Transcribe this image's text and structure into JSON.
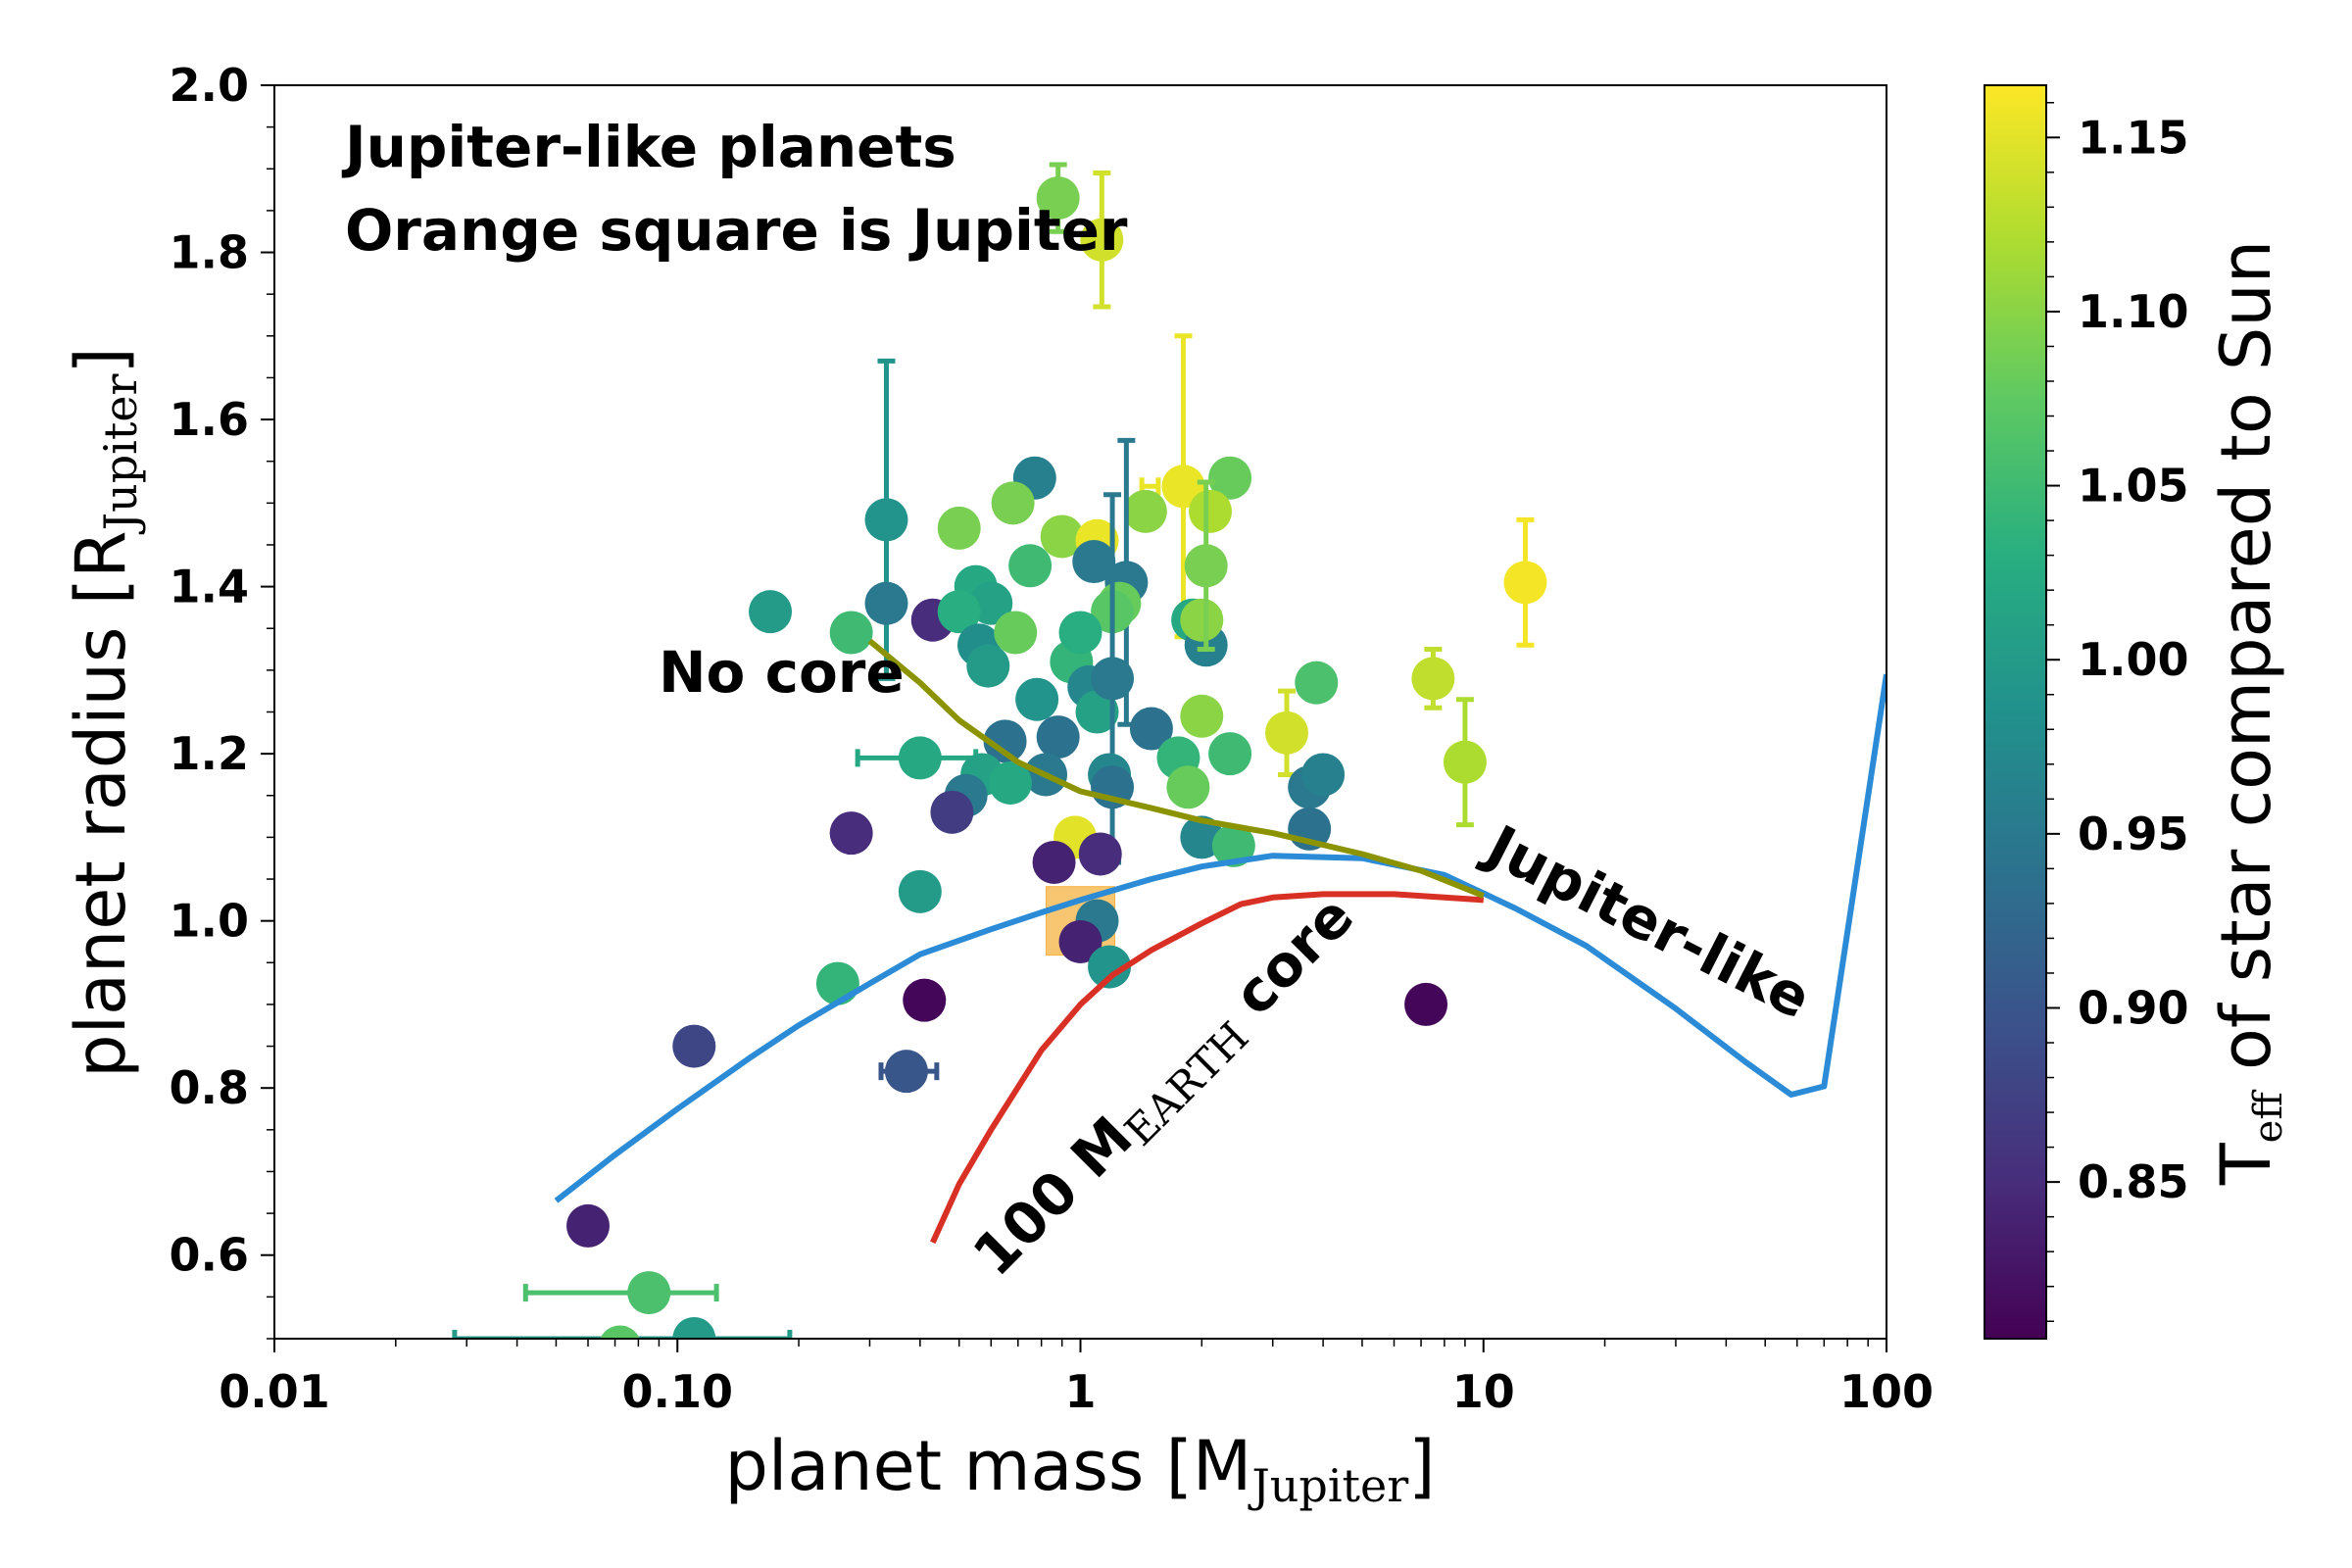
{
  "chart_data": {
    "type": "scatter",
    "title": "",
    "xlabel": "planet mass [M",
    "xlabel_sub": "Jupiter",
    "xlabel_end": "]",
    "ylabel": "planet radius [R",
    "ylabel_sub": "Jupiter",
    "ylabel_end": "]",
    "x_scale": "log",
    "xlim": [
      0.01,
      100
    ],
    "ylim": [
      0.5,
      2.0
    ],
    "x_ticks": [
      0.01,
      0.1,
      1,
      10,
      100
    ],
    "x_tick_labels": [
      "0.01",
      "0.10",
      "1",
      "10",
      "100"
    ],
    "y_ticks": [
      0.6,
      0.8,
      1.0,
      1.2,
      1.4,
      1.6,
      1.8,
      2.0
    ],
    "y_tick_labels": [
      "0.6",
      "0.8",
      "1.0",
      "1.2",
      "1.4",
      "1.6",
      "1.8",
      "2.0"
    ],
    "colorbar": {
      "label": "T",
      "label_sub": "eff",
      "label_end": " of star compared to Sun",
      "range": [
        0.805,
        1.165
      ],
      "ticks": [
        0.85,
        0.9,
        0.95,
        1.0,
        1.05,
        1.1,
        1.15
      ],
      "tick_labels": [
        "0.85",
        "0.90",
        "0.95",
        "1.00",
        "1.05",
        "1.10",
        "1.15"
      ]
    },
    "annotations": {
      "line1": "Jupiter-like planets",
      "line2": "Orange square is Jupiter",
      "no_core": "No core",
      "jupiter_like": "Jupiter-like",
      "core_prefix": "100 M",
      "core_sub": "EARTH",
      "core_suffix": " core"
    },
    "jupiter_marker": {
      "x": 1.0,
      "y": 1.0,
      "color": "#f5a623"
    },
    "curves": [
      {
        "color": "#2b8bd6",
        "points": [
          [
            0.05,
            0.665
          ],
          [
            0.07,
            0.72
          ],
          [
            0.1,
            0.775
          ],
          [
            0.15,
            0.835
          ],
          [
            0.2,
            0.875
          ],
          [
            0.3,
            0.925
          ],
          [
            0.4,
            0.96
          ],
          [
            0.6,
            0.99
          ],
          [
            0.8,
            1.01
          ],
          [
            1.0,
            1.025
          ],
          [
            1.5,
            1.05
          ],
          [
            2.0,
            1.065
          ],
          [
            3.0,
            1.078
          ],
          [
            5.0,
            1.075
          ],
          [
            8.0,
            1.055
          ],
          [
            12.0,
            1.015
          ],
          [
            18.0,
            0.97
          ],
          [
            30.0,
            0.895
          ],
          [
            45.0,
            0.83
          ],
          [
            58.0,
            0.792
          ],
          [
            70.0,
            0.802
          ],
          [
            100.0,
            1.295
          ]
        ]
      },
      {
        "color": "#d93025",
        "points": [
          [
            0.43,
            0.615
          ],
          [
            0.5,
            0.685
          ],
          [
            0.6,
            0.75
          ],
          [
            0.8,
            0.845
          ],
          [
            1.0,
            0.9
          ],
          [
            1.2,
            0.935
          ],
          [
            1.5,
            0.965
          ],
          [
            2.0,
            0.997
          ],
          [
            2.5,
            1.02
          ],
          [
            3.0,
            1.028
          ],
          [
            4.0,
            1.032
          ],
          [
            6.0,
            1.032
          ],
          [
            10.0,
            1.025
          ]
        ]
      },
      {
        "color": "#8b9400",
        "points": [
          [
            0.3,
            1.335
          ],
          [
            0.4,
            1.285
          ],
          [
            0.5,
            1.24
          ],
          [
            0.7,
            1.19
          ],
          [
            1.0,
            1.155
          ],
          [
            1.5,
            1.135
          ],
          [
            2.0,
            1.12
          ],
          [
            3.0,
            1.105
          ],
          [
            5.0,
            1.08
          ],
          [
            7.0,
            1.06
          ],
          [
            10.0,
            1.03
          ]
        ]
      }
    ],
    "points": [
      {
        "x": 0.88,
        "y": 1.865,
        "t": 1.09,
        "yerr": 0.04
      },
      {
        "x": 1.13,
        "y": 1.815,
        "t": 1.14,
        "yerr": 0.08
      },
      {
        "x": 0.33,
        "y": 1.48,
        "t": 0.99,
        "yerr": 0.19
      },
      {
        "x": 0.5,
        "y": 1.47,
        "t": 1.09
      },
      {
        "x": 0.77,
        "y": 1.53,
        "t": 0.96
      },
      {
        "x": 0.68,
        "y": 1.5,
        "t": 1.09
      },
      {
        "x": 0.9,
        "y": 1.46,
        "t": 1.1
      },
      {
        "x": 1.1,
        "y": 1.455,
        "t": 1.155
      },
      {
        "x": 1.8,
        "y": 1.52,
        "t": 1.155,
        "xerr": [
          1.42,
          1.56
        ],
        "yerr": 0.18
      },
      {
        "x": 2.35,
        "y": 1.53,
        "t": 1.08
      },
      {
        "x": 2.1,
        "y": 1.49,
        "t": 1.12
      },
      {
        "x": 1.45,
        "y": 1.49,
        "t": 1.1
      },
      {
        "x": 1.08,
        "y": 1.43,
        "t": 0.95
      },
      {
        "x": 1.3,
        "y": 1.405,
        "t": 0.95,
        "yerr": 0.17
      },
      {
        "x": 1.25,
        "y": 1.38,
        "t": 1.08
      },
      {
        "x": 1.2,
        "y": 1.37,
        "t": 1.07
      },
      {
        "x": 0.75,
        "y": 1.425,
        "t": 1.05
      },
      {
        "x": 0.55,
        "y": 1.4,
        "t": 1.02
      },
      {
        "x": 0.6,
        "y": 1.38,
        "t": 1.01
      },
      {
        "x": 0.17,
        "y": 1.37,
        "t": 1.0
      },
      {
        "x": 0.33,
        "y": 1.38,
        "t": 0.95
      },
      {
        "x": 0.27,
        "y": 1.345,
        "t": 1.05
      },
      {
        "x": 0.43,
        "y": 1.36,
        "t": 0.85
      },
      {
        "x": 0.5,
        "y": 1.37,
        "t": 1.03
      },
      {
        "x": 0.56,
        "y": 1.33,
        "t": 0.98
      },
      {
        "x": 0.59,
        "y": 1.305,
        "t": 1.0
      },
      {
        "x": 0.69,
        "y": 1.345,
        "t": 1.08
      },
      {
        "x": 0.95,
        "y": 1.31,
        "t": 1.04
      },
      {
        "x": 1.0,
        "y": 1.345,
        "t": 1.03
      },
      {
        "x": 1.05,
        "y": 1.28,
        "t": 0.97
      },
      {
        "x": 1.1,
        "y": 1.25,
        "t": 1.01
      },
      {
        "x": 1.2,
        "y": 1.29,
        "t": 0.95,
        "yerr": 0.22
      },
      {
        "x": 0.78,
        "y": 1.265,
        "t": 0.99
      },
      {
        "x": 0.65,
        "y": 1.215,
        "t": 0.94
      },
      {
        "x": 0.88,
        "y": 1.22,
        "t": 0.94
      },
      {
        "x": 0.82,
        "y": 1.175,
        "t": 0.95
      },
      {
        "x": 0.4,
        "y": 1.195,
        "t": 1.02,
        "xerr": [
          0.28,
          0.55
        ]
      },
      {
        "x": 0.57,
        "y": 1.175,
        "t": 1.01
      },
      {
        "x": 0.67,
        "y": 1.165,
        "t": 1.02
      },
      {
        "x": 0.52,
        "y": 1.15,
        "t": 0.95
      },
      {
        "x": 0.48,
        "y": 1.13,
        "t": 0.87
      },
      {
        "x": 0.27,
        "y": 1.105,
        "t": 0.85
      },
      {
        "x": 1.18,
        "y": 1.175,
        "t": 0.97
      },
      {
        "x": 1.2,
        "y": 1.16,
        "t": 0.94
      },
      {
        "x": 1.5,
        "y": 1.23,
        "t": 0.94
      },
      {
        "x": 1.9,
        "y": 1.36,
        "t": 1.02
      },
      {
        "x": 2.05,
        "y": 1.33,
        "t": 0.96
      },
      {
        "x": 2.0,
        "y": 1.36,
        "t": 1.1
      },
      {
        "x": 2.05,
        "y": 1.425,
        "t": 1.09,
        "yerr": 0.1
      },
      {
        "x": 2.0,
        "y": 1.245,
        "t": 1.1
      },
      {
        "x": 1.75,
        "y": 1.195,
        "t": 1.04
      },
      {
        "x": 2.35,
        "y": 1.2,
        "t": 1.05
      },
      {
        "x": 1.85,
        "y": 1.16,
        "t": 1.08
      },
      {
        "x": 2.0,
        "y": 1.1,
        "t": 0.97
      },
      {
        "x": 2.4,
        "y": 1.09,
        "t": 1.05
      },
      {
        "x": 3.25,
        "y": 1.225,
        "t": 1.14,
        "yerr": 0.05
      },
      {
        "x": 3.85,
        "y": 1.285,
        "t": 1.06
      },
      {
        "x": 3.7,
        "y": 1.16,
        "t": 0.95
      },
      {
        "x": 4.0,
        "y": 1.175,
        "t": 0.96
      },
      {
        "x": 3.7,
        "y": 1.11,
        "t": 0.94
      },
      {
        "x": 7.5,
        "y": 1.29,
        "t": 1.13,
        "yerr": 0.035
      },
      {
        "x": 9.0,
        "y": 1.19,
        "t": 1.12,
        "yerr": 0.075
      },
      {
        "x": 12.7,
        "y": 1.405,
        "t": 1.16,
        "yerr": 0.075
      },
      {
        "x": 0.97,
        "y": 1.1,
        "t": 1.15
      },
      {
        "x": 1.12,
        "y": 1.08,
        "t": 0.85
      },
      {
        "x": 0.86,
        "y": 1.07,
        "t": 0.84
      },
      {
        "x": 1.1,
        "y": 1.0,
        "t": 0.95
      },
      {
        "x": 1.0,
        "y": 0.975,
        "t": 0.84
      },
      {
        "x": 1.18,
        "y": 0.945,
        "t": 0.99
      },
      {
        "x": 0.4,
        "y": 1.035,
        "t": 1.0
      },
      {
        "x": 0.25,
        "y": 0.925,
        "t": 1.04
      },
      {
        "x": 0.41,
        "y": 0.905,
        "t": 0.81
      },
      {
        "x": 0.11,
        "y": 0.85,
        "t": 0.88
      },
      {
        "x": 0.37,
        "y": 0.82,
        "t": 0.9,
        "xerr": [
          0.32,
          0.44
        ]
      },
      {
        "x": 0.06,
        "y": 0.635,
        "t": 0.84
      },
      {
        "x": 0.085,
        "y": 0.555,
        "t": 1.06,
        "xerr": [
          0.042,
          0.125
        ]
      },
      {
        "x": 0.11,
        "y": 0.5,
        "t": 1.0,
        "xerr": [
          0.028,
          0.19
        ]
      },
      {
        "x": 0.072,
        "y": 0.49,
        "t": 1.07
      },
      {
        "x": 7.2,
        "y": 0.9,
        "t": 0.81
      }
    ]
  }
}
